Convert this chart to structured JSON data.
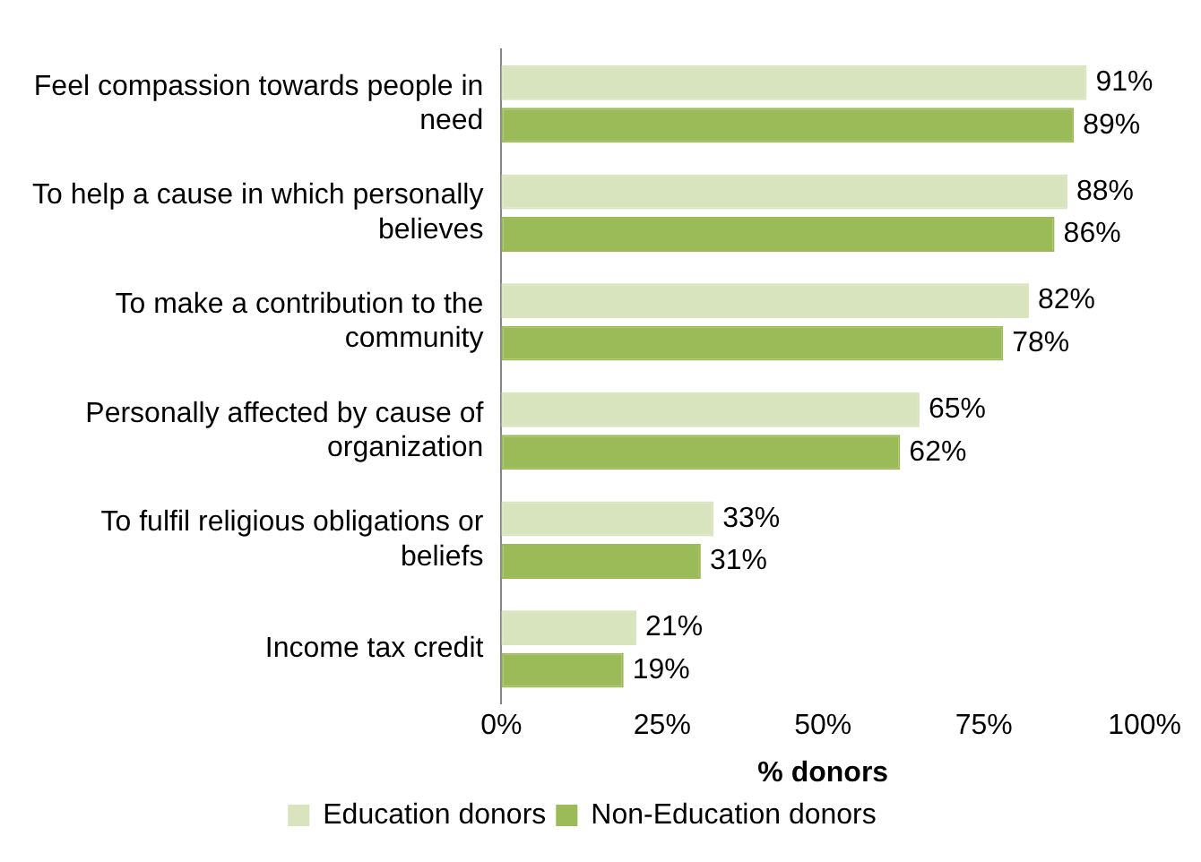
{
  "chart_data": {
    "type": "bar",
    "orientation": "horizontal",
    "xlabel": "% donors",
    "categories": [
      "Feel compassion towards people in need",
      "To help a cause in which personally believes",
      "To make a contribution to the community",
      "Personally affected by cause of organization",
      "To fulfil religious obligations or beliefs",
      "Income tax credit"
    ],
    "series": [
      {
        "name": "Education donors",
        "color": "#d7e4bd",
        "values": [
          91,
          88,
          82,
          65,
          33,
          21
        ],
        "value_labels": [
          "91%",
          "88%",
          "82%",
          "65%",
          "33%",
          "21%"
        ]
      },
      {
        "name": "Non-Education donors",
        "color": "#9bbb59",
        "values": [
          89,
          86,
          78,
          62,
          31,
          19
        ],
        "value_labels": [
          "89%",
          "86%",
          "78%",
          "62%",
          "31%",
          "19%"
        ]
      }
    ],
    "xlim": [
      0,
      100
    ],
    "xticks": [
      {
        "value": 0,
        "label": "0%"
      },
      {
        "value": 25,
        "label": "25%"
      },
      {
        "value": 50,
        "label": "50%"
      },
      {
        "value": 75,
        "label": "75%"
      },
      {
        "value": 100,
        "label": "100%"
      }
    ],
    "grid": false,
    "legend": "bottom"
  }
}
